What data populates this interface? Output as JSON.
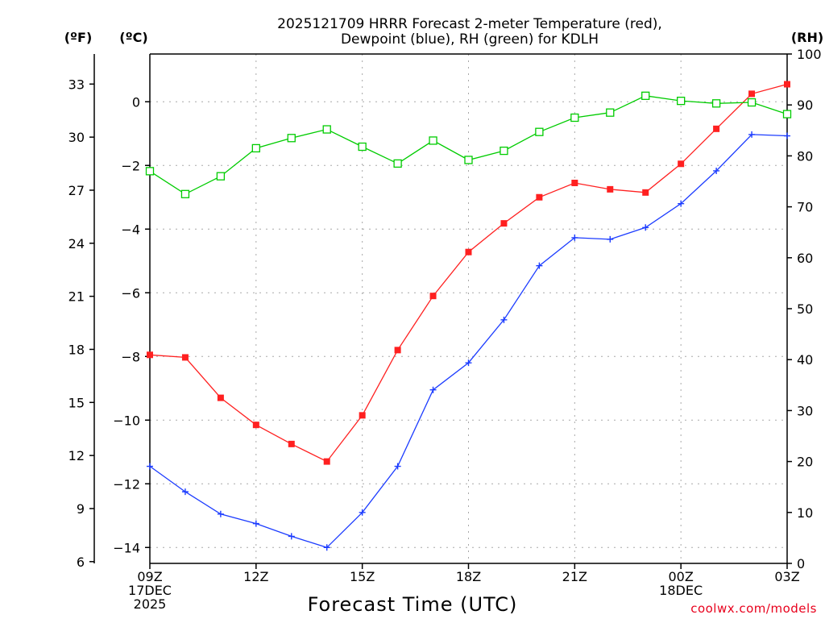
{
  "chart_data": {
    "type": "line",
    "title_line1": "2025121709 HRRR Forecast 2-meter Temperature (red),",
    "title_line2": "Dewpoint (blue), RH (green) for KDLH",
    "xlabel": "Forecast Time (UTC)",
    "credit": "coolwx.com/models",
    "units": {
      "left_outer": "(ºF)",
      "left_inner": "(ºC)",
      "right": "(RH)"
    },
    "x": [
      9,
      10,
      11,
      12,
      13,
      14,
      15,
      16,
      17,
      18,
      19,
      20,
      21,
      22,
      23,
      24,
      25,
      26,
      27
    ],
    "xlim": [
      9,
      27
    ],
    "x_ticks": [
      {
        "x": 9,
        "lines": [
          "09Z",
          "17DEC",
          "2025"
        ]
      },
      {
        "x": 12,
        "lines": [
          "12Z"
        ]
      },
      {
        "x": 15,
        "lines": [
          "15Z"
        ]
      },
      {
        "x": 18,
        "lines": [
          "18Z"
        ]
      },
      {
        "x": 21,
        "lines": [
          "21Z"
        ]
      },
      {
        "x": 24,
        "lines": [
          "00Z",
          "18DEC"
        ]
      },
      {
        "x": 27,
        "lines": [
          "03Z"
        ]
      }
    ],
    "celsius_axis": {
      "ylim": [
        -14.5,
        1.5
      ],
      "ticks": [
        0,
        -2,
        -4,
        -6,
        -8,
        -10,
        -12,
        -14
      ],
      "labels": [
        "0",
        "−2",
        "−4",
        "−6",
        "−8",
        "−10",
        "−12",
        "−14"
      ]
    },
    "fahrenheit_axis": {
      "ticks": [
        33,
        30,
        27,
        24,
        21,
        18,
        15,
        12,
        9,
        6
      ],
      "labels": [
        "33",
        "30",
        "27",
        "24",
        "21",
        "18",
        "15",
        "12",
        "9",
        "6"
      ]
    },
    "rh_axis": {
      "ylim": [
        0,
        100
      ],
      "ticks": [
        0,
        10,
        20,
        30,
        40,
        50,
        60,
        70,
        80,
        90,
        100
      ],
      "labels": [
        "0",
        "10",
        "20",
        "30",
        "40",
        "50",
        "60",
        "70",
        "80",
        "90",
        "100"
      ]
    },
    "series": [
      {
        "name": "Temperature",
        "axis": "celsius",
        "color": "#ff2020",
        "marker": "filled-square",
        "values": [
          -7.95,
          -8.03,
          -9.3,
          -10.15,
          -10.75,
          -11.3,
          -9.85,
          -7.8,
          -6.1,
          -4.72,
          -3.82,
          -3.0,
          -2.55,
          -2.75,
          -2.85,
          -1.95,
          -0.85,
          0.25,
          0.55
        ]
      },
      {
        "name": "Dewpoint",
        "axis": "celsius",
        "color": "#1c3cff",
        "marker": "plus",
        "values": [
          -11.45,
          -12.25,
          -12.95,
          -13.25,
          -13.65,
          -14.0,
          -12.9,
          -11.45,
          -9.05,
          -8.2,
          -6.85,
          -5.15,
          -4.27,
          -4.32,
          -3.95,
          -3.2,
          -2.17,
          -1.03,
          -1.07
        ]
      },
      {
        "name": "RH",
        "axis": "rh",
        "color": "#00cc00",
        "marker": "open-square",
        "values": [
          77.0,
          72.5,
          76.0,
          81.5,
          83.5,
          85.2,
          81.8,
          78.5,
          83.0,
          79.2,
          81.0,
          84.7,
          87.5,
          88.5,
          91.8,
          90.8,
          90.3,
          90.5,
          88.2
        ]
      }
    ]
  }
}
